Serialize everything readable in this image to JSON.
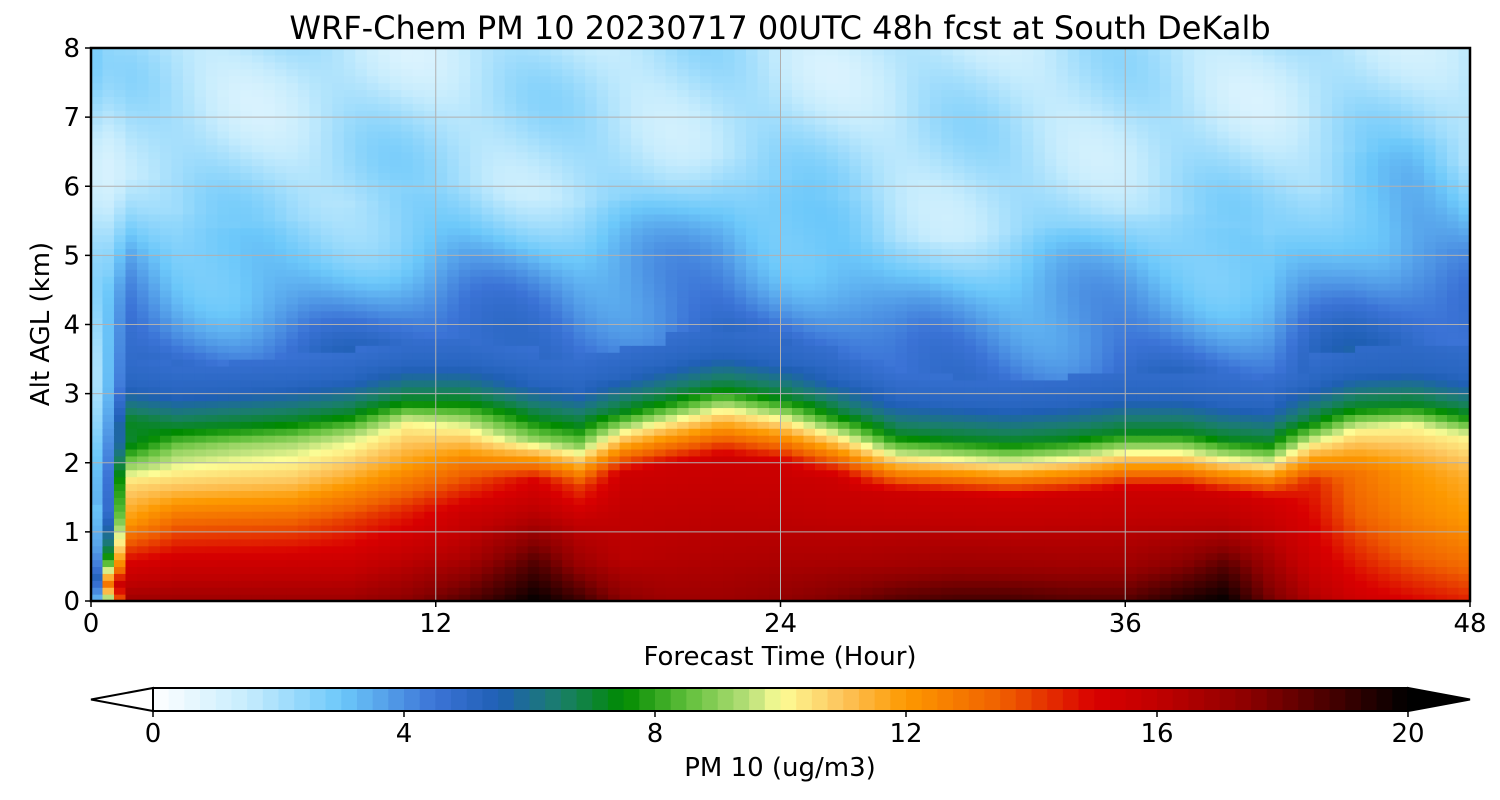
{
  "chart_data": {
    "type": "heatmap",
    "title": "WRF-Chem PM 10  20230717 00UTC 48h fcst at South DeKalb",
    "xlabel": "Forecast Time (Hour)",
    "ylabel": "Alt AGL (km)",
    "xlim": [
      0,
      48
    ],
    "ylim": [
      0,
      8
    ],
    "xticks": [
      0,
      12,
      24,
      36,
      48
    ],
    "yticks": [
      0,
      1,
      2,
      3,
      4,
      5,
      6,
      7,
      8
    ],
    "grid": true,
    "colorbar": {
      "label": "PM 10  (ug/m3)",
      "range": [
        0,
        20
      ],
      "ticks": [
        0,
        4,
        8,
        12,
        16,
        20
      ],
      "extend": "both",
      "colors": [
        {
          "v": 0,
          "c": "#ffffff"
        },
        {
          "v": 1.5,
          "c": "#c6ecfd"
        },
        {
          "v": 3,
          "c": "#6cc8fa"
        },
        {
          "v": 4.5,
          "c": "#3b73d6"
        },
        {
          "v": 5.5,
          "c": "#1f5fb5"
        },
        {
          "v": 6.5,
          "c": "#1a7f6a"
        },
        {
          "v": 7.5,
          "c": "#008a00"
        },
        {
          "v": 8.5,
          "c": "#5fbf3a"
        },
        {
          "v": 9.5,
          "c": "#b8e07a"
        },
        {
          "v": 10,
          "c": "#fdfd96"
        },
        {
          "v": 11,
          "c": "#fdc35a"
        },
        {
          "v": 12,
          "c": "#fd9900"
        },
        {
          "v": 13.5,
          "c": "#f06000"
        },
        {
          "v": 15,
          "c": "#d90000"
        },
        {
          "v": 16,
          "c": "#c10000"
        },
        {
          "v": 17.5,
          "c": "#8a0000"
        },
        {
          "v": 19,
          "c": "#3a0000"
        },
        {
          "v": 20,
          "c": "#000000"
        }
      ]
    },
    "columns": [
      {
        "x": 0.0,
        "h": 0.0,
        "aloft": 3,
        "s": [
          0.5,
          0.5
        ]
      },
      {
        "x": 0.7,
        "h": 0.5,
        "aloft": 3,
        "s": [
          10,
          15,
          10
        ]
      },
      {
        "x": 1.3,
        "h": 2.3,
        "aloft": 2.6,
        "s": [
          17,
          15,
          12,
          10.5,
          7
        ]
      },
      {
        "x": 3,
        "h": 2.2,
        "aloft": 2.2,
        "s": [
          17,
          15.5,
          13.5,
          11,
          9
        ]
      },
      {
        "x": 5,
        "h": 2.25,
        "aloft": 2.0,
        "s": [
          17,
          15.5,
          13.5,
          11,
          9.2
        ]
      },
      {
        "x": 7,
        "h": 2.3,
        "aloft": 2.0,
        "s": [
          17,
          15.5,
          13.5,
          11,
          9.3
        ]
      },
      {
        "x": 9,
        "h": 2.4,
        "aloft": 2.1,
        "s": [
          17,
          15.5,
          14,
          11.5,
          9.5
        ]
      },
      {
        "x": 11,
        "h": 2.6,
        "aloft": 2.1,
        "s": [
          17.5,
          16,
          14.5,
          12,
          10
        ]
      },
      {
        "x": 13,
        "h": 2.6,
        "aloft": 2.2,
        "s": [
          18.5,
          16.5,
          15.5,
          13,
          9.5
        ]
      },
      {
        "x": 15.5,
        "h": 2.35,
        "aloft": 2.3,
        "s": [
          20,
          18.5,
          16.5,
          15,
          9
        ]
      },
      {
        "x": 17,
        "h": 2.25,
        "aloft": 2.3,
        "s": [
          19,
          17,
          16,
          14,
          9
        ]
      },
      {
        "x": 18.5,
        "h": 2.45,
        "aloft": 2.2,
        "s": [
          17.5,
          16.2,
          16,
          15.5,
          10
        ]
      },
      {
        "x": 20,
        "h": 2.6,
        "aloft": 2.2,
        "s": [
          17,
          16.3,
          16,
          15.5,
          10
        ]
      },
      {
        "x": 22,
        "h": 2.78,
        "aloft": 2.4,
        "s": [
          17,
          16.4,
          16,
          15.5,
          10
        ]
      },
      {
        "x": 24,
        "h": 2.65,
        "aloft": 2.2,
        "s": [
          17.3,
          16.5,
          16,
          15.5,
          10
        ]
      },
      {
        "x": 26,
        "h": 2.4,
        "aloft": 2.2,
        "s": [
          17.8,
          16.6,
          16,
          15.5,
          10
        ]
      },
      {
        "x": 28,
        "h": 2.1,
        "aloft": 1.9,
        "s": [
          18.5,
          16.8,
          16.2,
          15.5,
          10
        ]
      },
      {
        "x": 30,
        "h": 2.05,
        "aloft": 2.0,
        "s": [
          18.8,
          17,
          16.2,
          15.5,
          10
        ]
      },
      {
        "x": 32,
        "h": 2.0,
        "aloft": 2.1,
        "s": [
          18.8,
          17,
          16.2,
          15.5,
          10
        ]
      },
      {
        "x": 34,
        "h": 2.05,
        "aloft": 2.2,
        "s": [
          18.5,
          16.9,
          16.2,
          15.5,
          10
        ]
      },
      {
        "x": 36,
        "h": 2.15,
        "aloft": 2.3,
        "s": [
          18.5,
          16.9,
          16.2,
          15.5,
          10
        ]
      },
      {
        "x": 38,
        "h": 2.15,
        "aloft": 2.3,
        "s": [
          19.5,
          17.5,
          16.3,
          15.5,
          10
        ]
      },
      {
        "x": 39.5,
        "h": 2.05,
        "aloft": 2.2,
        "s": [
          20,
          18.5,
          16.5,
          15.5,
          10
        ]
      },
      {
        "x": 41,
        "h": 2.0,
        "aloft": 2.1,
        "s": [
          18,
          17,
          16,
          15.2,
          10
        ]
      },
      {
        "x": 42.5,
        "h": 2.3,
        "aloft": 2.4,
        "s": [
          16.5,
          15.5,
          15,
          14.5,
          10
        ]
      },
      {
        "x": 44,
        "h": 2.5,
        "aloft": 2.8,
        "s": [
          15.5,
          14.5,
          13.5,
          13,
          10
        ]
      },
      {
        "x": 46,
        "h": 2.55,
        "aloft": 3.0,
        "s": [
          15,
          13.5,
          12.5,
          12,
          10
        ]
      },
      {
        "x": 48,
        "h": 2.4,
        "aloft": 2.7,
        "s": [
          14.5,
          13,
          12,
          11.5,
          10
        ]
      }
    ]
  }
}
